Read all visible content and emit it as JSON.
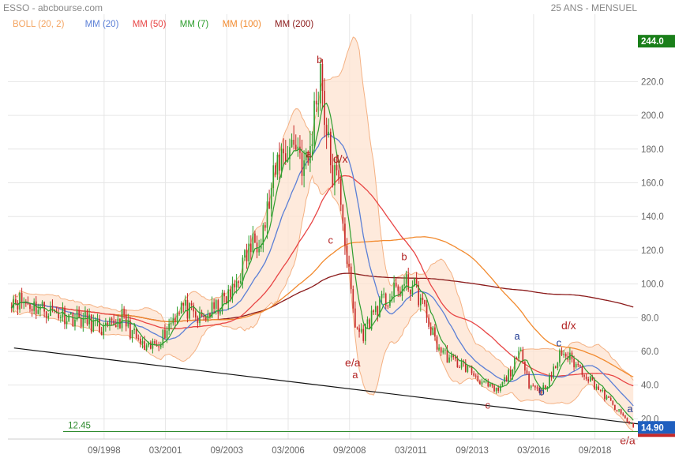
{
  "header": {
    "source": "ESSO - abcbourse.com",
    "period": "25 ANS - MENSUEL"
  },
  "chart_data": {
    "type": "candlestick",
    "x_range": [
      1994.75,
      2020.42
    ],
    "y_range": [
      8,
      260
    ],
    "yticks": [
      20,
      40,
      60,
      80,
      100,
      120,
      140,
      160,
      180,
      200,
      220
    ],
    "ytick_labels": [
      "20.0",
      "40.0",
      "60.0",
      "80.0",
      "100.0",
      "120.0",
      "140.0",
      "160.0",
      "180.0",
      "200.0",
      "220.0"
    ],
    "xticks": [
      1998.67,
      2001.17,
      2003.67,
      2006.17,
      2008.67,
      2011.17,
      2013.67,
      2016.17,
      2018.67
    ],
    "xtick_labels": [
      "09/1998",
      "03/2001",
      "09/2003",
      "03/2006",
      "09/2008",
      "03/2011",
      "09/2013",
      "03/2016",
      "09/2018"
    ],
    "legend": [
      {
        "label": "BOLL (20, 2)",
        "color": "#f4a460"
      },
      {
        "label": "MM (20)",
        "color": "#5b7fd6"
      },
      {
        "label": "MM (50)",
        "color": "#e84545"
      },
      {
        "label": "MM (7)",
        "color": "#2e9e2e"
      },
      {
        "label": "MM (100)",
        "color": "#f28a2e"
      },
      {
        "label": "MM (200)",
        "color": "#8b1a1a"
      }
    ],
    "price_keypoints": [
      [
        1994.9,
        92
      ],
      [
        1996.0,
        86
      ],
      [
        1997.0,
        82
      ],
      [
        1998.0,
        78
      ],
      [
        1998.7,
        72
      ],
      [
        1999.4,
        80
      ],
      [
        2000.0,
        67
      ],
      [
        2000.4,
        60
      ],
      [
        2001.0,
        68
      ],
      [
        2001.8,
        88
      ],
      [
        2002.5,
        78
      ],
      [
        2003.2,
        85
      ],
      [
        2003.9,
        95
      ],
      [
        2004.5,
        118
      ],
      [
        2005.2,
        135
      ],
      [
        2005.8,
        175
      ],
      [
        2006.5,
        185
      ],
      [
        2006.8,
        170
      ],
      [
        2007.0,
        172
      ],
      [
        2007.25,
        203
      ],
      [
        2007.5,
        230
      ],
      [
        2007.75,
        185
      ],
      [
        2008.0,
        165
      ],
      [
        2008.3,
        155
      ],
      [
        2008.6,
        110
      ],
      [
        2008.9,
        75
      ],
      [
        2009.2,
        70
      ],
      [
        2009.7,
        85
      ],
      [
        2010.3,
        92
      ],
      [
        2010.8,
        98
      ],
      [
        2011.2,
        100
      ],
      [
        2011.6,
        90
      ],
      [
        2011.9,
        76
      ],
      [
        2012.3,
        62
      ],
      [
        2012.8,
        55
      ],
      [
        2013.5,
        50
      ],
      [
        2014.2,
        40
      ],
      [
        2014.7,
        36
      ],
      [
        2015.3,
        50
      ],
      [
        2015.7,
        60
      ],
      [
        2016.0,
        40
      ],
      [
        2016.5,
        37
      ],
      [
        2016.9,
        45
      ],
      [
        2017.3,
        60
      ],
      [
        2017.7,
        55
      ],
      [
        2018.2,
        48
      ],
      [
        2018.8,
        38
      ],
      [
        2019.4,
        28
      ],
      [
        2019.9,
        20
      ],
      [
        2020.25,
        14.9
      ]
    ],
    "support_line": {
      "from": [
        1995.0,
        62
      ],
      "to": [
        2020.42,
        17
      ]
    },
    "horizontal_line": {
      "value": 12.45,
      "label": "12.45",
      "color": "#2e8b2e"
    },
    "price_tags": [
      {
        "value": 244.0,
        "label": "244.0",
        "color": "#1a7f1a"
      },
      {
        "value": 14.9,
        "label": "14.90",
        "color": "#1f5fbf"
      }
    ],
    "wave_labels": [
      {
        "text": "b",
        "x": 2007.45,
        "y": 231,
        "color": "#b22222"
      },
      {
        "text": "a",
        "x": 2007.0,
        "y": 175,
        "color": "#b22222"
      },
      {
        "text": "d/x",
        "x": 2008.3,
        "y": 172,
        "color": "#b22222"
      },
      {
        "text": "c",
        "x": 2007.9,
        "y": 124,
        "color": "#b22222"
      },
      {
        "text": "b",
        "x": 2010.9,
        "y": 114,
        "color": "#b22222"
      },
      {
        "text": "e/a",
        "x": 2008.8,
        "y": 51,
        "color": "#b22222"
      },
      {
        "text": "a",
        "x": 2008.9,
        "y": 44,
        "color": "#b22222"
      },
      {
        "text": "a",
        "x": 2015.5,
        "y": 67,
        "color": "#1f3a93"
      },
      {
        "text": "c",
        "x": 2014.3,
        "y": 26,
        "color": "#b22222"
      },
      {
        "text": "b",
        "x": 2016.5,
        "y": 34,
        "color": "#1f3a93"
      },
      {
        "text": "c",
        "x": 2017.2,
        "y": 63,
        "color": "#1f3a93"
      },
      {
        "text": "d/x",
        "x": 2017.6,
        "y": 73,
        "color": "#b22222"
      },
      {
        "text": "a",
        "x": 2020.1,
        "y": 24,
        "color": "#1f3a93"
      },
      {
        "text": "e/a",
        "x": 2020.0,
        "y": 5,
        "color": "#b22222"
      }
    ]
  }
}
